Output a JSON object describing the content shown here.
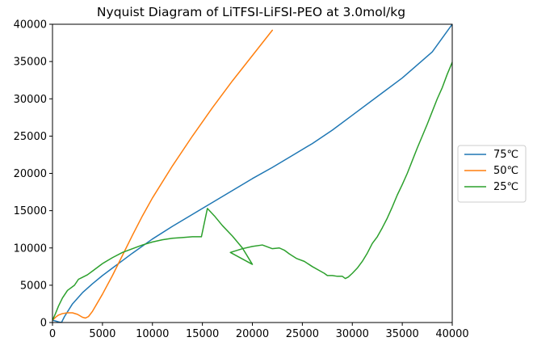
{
  "chart_data": {
    "type": "line",
    "title": "Nyquist Diagram of LiTFSI-LiFSI-PEO at 3.0mol/kg",
    "xlabel": "",
    "ylabel": "",
    "xlim": [
      0,
      40000
    ],
    "ylim": [
      0,
      40000
    ],
    "xticks": [
      0,
      5000,
      10000,
      15000,
      20000,
      25000,
      30000,
      35000,
      40000
    ],
    "yticks": [
      0,
      5000,
      10000,
      15000,
      20000,
      25000,
      30000,
      35000,
      40000
    ],
    "grid": false,
    "legend_position": "center-right-outside",
    "series": [
      {
        "name": "75℃",
        "color": "#1f77b4",
        "x": [
          0,
          300,
          700,
          900,
          1200,
          2000,
          3000,
          4000,
          5000,
          6000,
          7000,
          8000,
          10000,
          12000,
          14000,
          16000,
          18000,
          20000,
          22000,
          24000,
          26000,
          28000,
          30000,
          33000,
          35000,
          38000,
          40000
        ],
        "y": [
          300,
          200,
          50,
          0,
          800,
          2500,
          4000,
          5200,
          6300,
          7300,
          8300,
          9300,
          11200,
          12900,
          14500,
          16100,
          17700,
          19300,
          20800,
          22400,
          24000,
          25800,
          27800,
          30800,
          32800,
          36300,
          40000
        ]
      },
      {
        "name": "50℃",
        "color": "#ff7f0e",
        "x": [
          0,
          300,
          600,
          1000,
          1500,
          2000,
          2500,
          3000,
          3300,
          3600,
          4000,
          5000,
          6000,
          7000,
          8000,
          9000,
          10000,
          12000,
          14000,
          16000,
          18000,
          20000,
          22000
        ],
        "y": [
          300,
          700,
          1000,
          1200,
          1300,
          1300,
          1100,
          700,
          600,
          800,
          1500,
          3800,
          6300,
          9000,
          11700,
          14300,
          16700,
          21000,
          25000,
          28800,
          32400,
          35800,
          39200
        ]
      },
      {
        "name": "25℃",
        "color": "#2ca02c",
        "x": [
          0,
          300,
          600,
          1000,
          1500,
          2200,
          2600,
          2900,
          3200,
          3500,
          4000,
          5000,
          6000,
          7000,
          8000,
          9000,
          10000,
          11000,
          12000,
          13000,
          14000,
          14900,
          15500,
          16200,
          17000,
          18000,
          19000,
          20000,
          17800,
          19000,
          20000,
          21000,
          22000,
          22700,
          23200,
          23700,
          24400,
          25200,
          26000,
          26800,
          27200,
          27500,
          28000,
          28500,
          29000,
          29300,
          29600,
          30000,
          30500,
          31000,
          31500,
          32000,
          32500,
          33000,
          33500,
          34000,
          34500,
          35000,
          35500,
          36000,
          36500,
          37000,
          37500,
          38000,
          38500,
          39000,
          39500,
          40000
        ],
        "y": [
          300,
          1200,
          2200,
          3300,
          4300,
          5000,
          5800,
          6000,
          6200,
          6400,
          6900,
          7900,
          8700,
          9400,
          9900,
          10400,
          10800,
          11100,
          11300,
          11400,
          11500,
          11500,
          15300,
          14300,
          13000,
          11600,
          10000,
          7800,
          9400,
          9900,
          10200,
          10400,
          9900,
          10000,
          9700,
          9200,
          8600,
          8200,
          7500,
          6900,
          6600,
          6300,
          6300,
          6200,
          6200,
          5900,
          6100,
          6600,
          7300,
          8200,
          9300,
          10600,
          11500,
          12700,
          14000,
          15500,
          17100,
          18500,
          20000,
          21700,
          23400,
          25000,
          26600,
          28300,
          30000,
          31500,
          33300,
          34900
        ]
      }
    ]
  }
}
